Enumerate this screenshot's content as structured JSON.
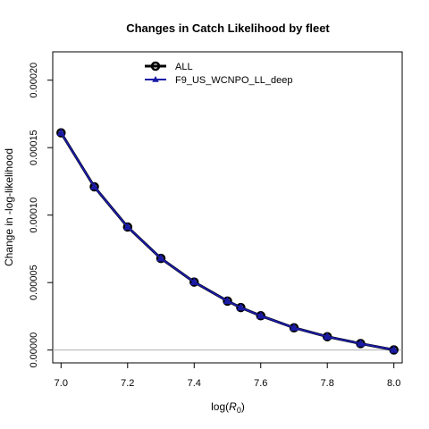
{
  "chart_data": {
    "type": "line",
    "title": "Changes in Catch Likelihood by fleet",
    "xlabel_prefix": "log(",
    "xlabel_var": "R",
    "xlabel_sub": "0",
    "xlabel_suffix": ")",
    "ylabel": "Change in -log-likelihood",
    "xlim": [
      6.975,
      8.025
    ],
    "ylim": [
      -9.5e-06,
      0.000221
    ],
    "x_ticks": [
      "7.0",
      "7.2",
      "7.4",
      "7.6",
      "7.8",
      "8.0"
    ],
    "y_ticks": [
      "0.00000",
      "0.00005",
      "0.00010",
      "0.00015",
      "0.00020"
    ],
    "x_tick_values": [
      7.0,
      7.2,
      7.4,
      7.6,
      7.8,
      8.0
    ],
    "y_tick_values": [
      0,
      5e-05,
      0.0001,
      0.00015,
      0.0002
    ],
    "reference_line_y": 0,
    "legend_position": "top",
    "x": [
      7.0,
      7.1,
      7.2,
      7.3,
      7.4,
      7.5,
      7.54,
      7.6,
      7.7,
      7.8,
      7.9,
      8.0
    ],
    "series": [
      {
        "name": "ALL",
        "color": "#000000",
        "marker": "circle",
        "values": [
          0.000161,
          0.000121,
          9.12e-05,
          6.79e-05,
          5.04e-05,
          3.63e-05,
          3.15e-05,
          2.54e-05,
          1.65e-05,
          9.9e-06,
          4.8e-06,
          1e-07
        ]
      },
      {
        "name": "F9_US_WCNPO_LL_deep",
        "color": "#1a1aa6",
        "marker": "triangle",
        "values": [
          0.000161,
          0.000121,
          9.12e-05,
          6.79e-05,
          5.04e-05,
          3.63e-05,
          3.15e-05,
          2.54e-05,
          1.65e-05,
          9.9e-06,
          4.8e-06,
          1e-07
        ]
      }
    ]
  }
}
